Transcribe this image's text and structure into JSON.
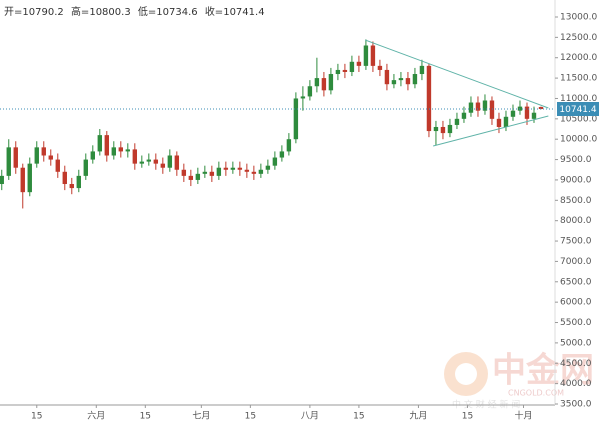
{
  "chart_data": {
    "type": "candlestick",
    "ohlc_labels": [
      "开=",
      "高=",
      "低=",
      "收="
    ],
    "x": [
      4,
      6,
      8,
      10,
      12,
      14,
      16,
      18,
      20,
      22,
      24,
      26,
      28,
      30,
      32,
      34,
      36,
      38,
      40,
      42,
      44,
      46,
      48,
      50,
      52,
      54,
      56,
      58,
      60,
      62,
      64,
      66,
      68,
      70,
      72,
      74,
      76,
      78,
      80,
      82,
      84,
      86,
      88,
      90,
      92,
      94,
      96,
      98,
      100,
      102,
      104,
      106,
      108,
      110,
      112,
      114,
      116,
      118,
      120,
      122,
      124,
      126,
      128,
      130,
      132,
      134,
      136,
      138,
      140,
      142,
      144,
      146,
      148,
      150,
      152,
      154,
      156,
      158
    ],
    "open": [
      8900,
      9100,
      9800,
      9300,
      8700,
      9400,
      9800,
      9600,
      9500,
      9200,
      8900,
      8800,
      9100,
      9500,
      9700,
      10100,
      9600,
      9800,
      9700,
      9750,
      9400,
      9450,
      9500,
      9400,
      9300,
      9600,
      9250,
      9100,
      9000,
      9150,
      9200,
      9100,
      9300,
      9250,
      9300,
      9250,
      9200,
      9150,
      9250,
      9350,
      9550,
      9700,
      10000,
      11000,
      11050,
      11300,
      11500,
      11200,
      11600,
      11700,
      11650,
      11900,
      11800,
      12300,
      11800,
      11700,
      11350,
      11450,
      11500,
      11350,
      11600,
      11800,
      10200,
      10300,
      10150,
      10350,
      10500,
      10650,
      10900,
      10700,
      10950,
      10500,
      10300,
      10550,
      10700,
      10800,
      10500,
      10790.2
    ],
    "high": [
      9250,
      10000,
      9950,
      9400,
      9550,
      9950,
      9950,
      9750,
      9650,
      9350,
      9050,
      9250,
      9650,
      9850,
      10250,
      10200,
      9950,
      9950,
      9900,
      9900,
      9600,
      9650,
      9650,
      9550,
      9750,
      9700,
      9400,
      9250,
      9300,
      9350,
      9350,
      9450,
      9450,
      9450,
      9450,
      9400,
      9350,
      9400,
      9500,
      9700,
      9850,
      10150,
      11150,
      11300,
      11450,
      12000,
      11650,
      11750,
      11850,
      11850,
      12050,
      12050,
      12450,
      12400,
      11950,
      11850,
      11600,
      11650,
      11650,
      11750,
      11950,
      11850,
      10450,
      10450,
      10500,
      10650,
      10800,
      11050,
      11050,
      11100,
      11050,
      10650,
      10700,
      10850,
      10950,
      10900,
      10800,
      10800.3
    ],
    "low": [
      8750,
      9000,
      9150,
      8300,
      8600,
      9300,
      9450,
      9350,
      9050,
      8750,
      8650,
      8700,
      9000,
      9400,
      9600,
      9450,
      9500,
      9550,
      9550,
      9250,
      9300,
      9350,
      9250,
      9150,
      9200,
      9100,
      8950,
      8850,
      8900,
      9050,
      8950,
      9000,
      9100,
      9150,
      9100,
      9050,
      9000,
      9050,
      9150,
      9250,
      9450,
      9600,
      9900,
      10700,
      10950,
      11150,
      11050,
      11100,
      11450,
      11500,
      11550,
      11650,
      11700,
      11650,
      11550,
      11200,
      11250,
      11300,
      11200,
      11250,
      11450,
      10050,
      9850,
      10000,
      10050,
      10250,
      10400,
      10550,
      10550,
      10600,
      10350,
      10150,
      10200,
      10450,
      10600,
      10350,
      10400,
      10734.6
    ],
    "close": [
      9100,
      9800,
      9300,
      8700,
      9400,
      9800,
      9600,
      9500,
      9200,
      8900,
      8800,
      9100,
      9500,
      9700,
      10100,
      9600,
      9800,
      9700,
      9750,
      9400,
      9450,
      9500,
      9400,
      9300,
      9600,
      9250,
      9100,
      9000,
      9150,
      9200,
      9100,
      9300,
      9250,
      9300,
      9250,
      9200,
      9150,
      9250,
      9350,
      9550,
      9700,
      10000,
      11000,
      11050,
      11300,
      11500,
      11200,
      11600,
      11700,
      11650,
      11900,
      11800,
      12300,
      11800,
      11700,
      11350,
      11450,
      11500,
      11350,
      11600,
      11800,
      10200,
      10300,
      10150,
      10350,
      10500,
      10650,
      10900,
      10700,
      10950,
      10500,
      10300,
      10550,
      10700,
      10800,
      10500,
      10650,
      10741.4
    ],
    "up_color": "#2e8b3d",
    "down_color": "#c0392b",
    "last_price_color": "#3b8db5",
    "trendline_color": "#5fb3a8",
    "trendlines": [
      {
        "x": [
          107.8,
          160.1
        ],
        "y": [
          12435,
          10766
        ]
      },
      {
        "x": [
          127.2,
          160.1
        ],
        "y": [
          9833,
          10570
        ]
      }
    ],
    "xlim": [
      3.5,
      162
    ],
    "xticks": [
      {
        "value": 14,
        "label": "15"
      },
      {
        "value": 31,
        "label": "六月"
      },
      {
        "value": 45,
        "label": "15"
      },
      {
        "value": 61,
        "label": "七月"
      },
      {
        "value": 75,
        "label": "15"
      },
      {
        "value": 92,
        "label": "八月"
      },
      {
        "value": 106,
        "label": "15"
      },
      {
        "value": 123,
        "label": "九月"
      },
      {
        "value": 137,
        "label": "15"
      },
      {
        "value": 153,
        "label": "十月"
      }
    ],
    "ylim": [
      3500,
      13417
    ],
    "yticks": [
      {
        "value": 3500,
        "label": "3500.0"
      },
      {
        "value": 4000,
        "label": "4000.0"
      },
      {
        "value": 4500,
        "label": "4500.0"
      },
      {
        "value": 5000,
        "label": "5000.0"
      },
      {
        "value": 5500,
        "label": "5500.0"
      },
      {
        "value": 6000,
        "label": "6000.0"
      },
      {
        "value": 6500,
        "label": "6500.0"
      },
      {
        "value": 7000,
        "label": "7000.0"
      },
      {
        "value": 7500,
        "label": "7500.0"
      },
      {
        "value": 8000,
        "label": "8000.0"
      },
      {
        "value": 8500,
        "label": "8500.0"
      },
      {
        "value": 9000,
        "label": "9000.0"
      },
      {
        "value": 9500,
        "label": "9500.0"
      },
      {
        "value": 10000,
        "label": "10000.0"
      },
      {
        "value": 10500,
        "label": "10500.0"
      },
      {
        "value": 11000,
        "label": "11000.0"
      },
      {
        "value": 11500,
        "label": "11500.0"
      },
      {
        "value": 12000,
        "label": "12000.0"
      },
      {
        "value": 12500,
        "label": "12500.0"
      },
      {
        "value": 13000,
        "label": "13000.0"
      }
    ],
    "watermark": {
      "brand": "中金网",
      "site": "CNGOLD.COM",
      "slogan": "中 文 财 经 新 闻"
    }
  }
}
